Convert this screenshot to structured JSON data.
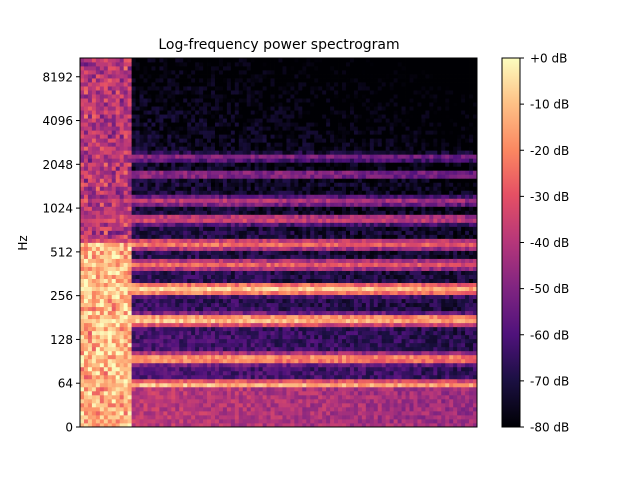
{
  "chart_data": {
    "type": "heatmap",
    "title": "Log-frequency power spectrogram",
    "xlabel": "",
    "ylabel": "Hz",
    "y_scale": "log2",
    "y_ticks": [
      0,
      64,
      128,
      256,
      512,
      1024,
      2048,
      4096,
      8192
    ],
    "y_range_hz": [
      0,
      11025
    ],
    "x_ticks": [],
    "colormap": "magma",
    "colorbar": {
      "ticks": [
        0,
        -10,
        -20,
        -30,
        -40,
        -50,
        -60,
        -70,
        -80
      ],
      "tick_labels": [
        "+0 dB",
        "-10 dB",
        "-20 dB",
        "-30 dB",
        "-40 dB",
        "-50 dB",
        "-60 dB",
        "-70 dB",
        "-80 dB"
      ],
      "range_db": [
        -80,
        0
      ]
    },
    "grid": false,
    "harmonic_bands_hz": [
      {
        "freq": 62,
        "level_db": -10
      },
      {
        "freq": 95,
        "level_db": -14
      },
      {
        "freq": 175,
        "level_db": -8
      },
      {
        "freq": 285,
        "level_db": -6
      },
      {
        "freq": 420,
        "level_db": -25
      },
      {
        "freq": 580,
        "level_db": -22
      },
      {
        "freq": 860,
        "level_db": -32
      },
      {
        "freq": 1150,
        "level_db": -38
      },
      {
        "freq": 1750,
        "level_db": -44
      },
      {
        "freq": 2300,
        "level_db": -48
      }
    ],
    "onset_burst_time_fraction": [
      0.0,
      0.13
    ]
  }
}
